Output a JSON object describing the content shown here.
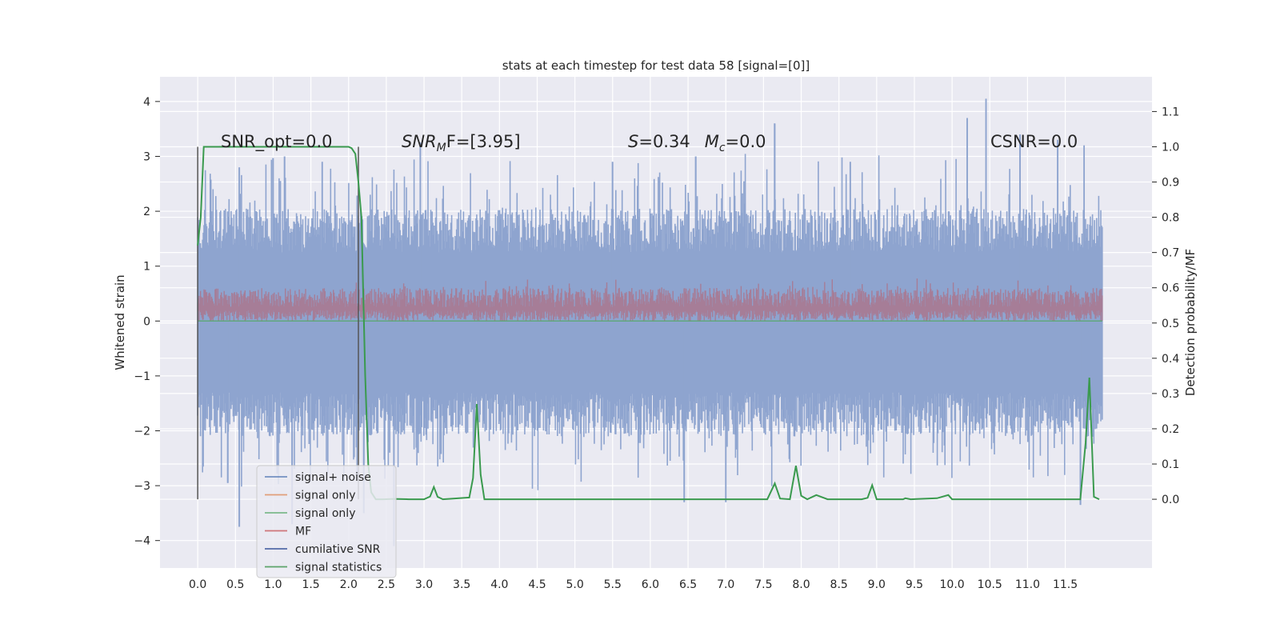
{
  "chart_data": {
    "type": "line",
    "title": "stats at each timestep for test data 58 [signal=[0]]",
    "ylabel": "Whitened strain",
    "y2label": "Detection probability/MF",
    "xlim": [
      -0.5,
      12.65
    ],
    "ylim": [
      -4.5,
      4.45
    ],
    "y2lim": [
      -0.195,
      1.1985
    ],
    "x_ticks": [
      0.0,
      0.5,
      1.0,
      1.5,
      2.0,
      2.5,
      3.0,
      3.5,
      4.0,
      4.5,
      5.0,
      5.5,
      6.0,
      6.5,
      7.0,
      7.5,
      8.0,
      8.5,
      9.0,
      9.5,
      10.0,
      10.5,
      11.0,
      11.5
    ],
    "x_tick_labels": [
      "0.0",
      "0.5",
      "1.0",
      "1.5",
      "2.0",
      "2.5",
      "3.0",
      "3.5",
      "4.0",
      "4.5",
      "5.0",
      "5.5",
      "6.0",
      "6.5",
      "7.0",
      "7.5",
      "8.0",
      "8.5",
      "9.0",
      "9.5",
      "10.0",
      "10.5",
      "11.0",
      "11.5"
    ],
    "y_ticks": [
      -4,
      -3,
      -2,
      -1,
      0,
      1,
      2,
      3,
      4
    ],
    "y_tick_labels": [
      "−4",
      "−3",
      "−2",
      "−1",
      "0",
      "1",
      "2",
      "3",
      "4"
    ],
    "y2_ticks": [
      0.0,
      0.1,
      0.2,
      0.3,
      0.4,
      0.5,
      0.6,
      0.7,
      0.8,
      0.9,
      1.0,
      1.1
    ],
    "y2_tick_labels": [
      "0.0",
      "0.1",
      "0.2",
      "0.3",
      "0.4",
      "0.5",
      "0.6",
      "0.7",
      "0.8",
      "0.9",
      "1.0",
      "1.1"
    ],
    "grid": true,
    "legend_position": "lower-left",
    "legend": [
      {
        "label": "signal+ noise",
        "color": "#4c72b0"
      },
      {
        "label": "signal only",
        "color": "#dd8452"
      },
      {
        "label": "signal only",
        "color": "#55a868"
      },
      {
        "label": "MF",
        "color": "#c44e52"
      },
      {
        "label": "cumilative SNR",
        "color": "#1f3f8f"
      },
      {
        "label": "signal statistics",
        "color": "#2e8b3e"
      }
    ],
    "annotations": {
      "snr_opt": "SNR_opt=0.0",
      "snr_mf_prefix": "SNR",
      "snr_mf_sub": "M",
      "snr_mf_suffix": "F=[3.95]",
      "s_prefix": "S",
      "s_value": "=0.34",
      "mc_prefix": "M",
      "mc_sub": "c",
      "mc_value": "=0.0",
      "csnr": "CSNR=0.0"
    },
    "vertical_lines_x": [
      0.0,
      2.13
    ],
    "series": [
      {
        "name": "signal+ noise",
        "color": "#4c72b0",
        "axis": "left",
        "x_range": [
          0.0,
          11.99
        ],
        "envelope_typical": [
          -1.3,
          1.25
        ],
        "peaks_upper": [
          [
            0.55,
            2.8
          ],
          [
            1.0,
            2.97
          ],
          [
            1.15,
            3.0
          ],
          [
            1.65,
            2.9
          ],
          [
            2.95,
            3.25
          ],
          [
            5.5,
            2.9
          ],
          [
            6.6,
            3.0
          ],
          [
            7.65,
            3.6
          ],
          [
            8.65,
            2.9
          ],
          [
            10.2,
            3.7
          ],
          [
            10.45,
            4.05
          ],
          [
            10.9,
            3.4
          ],
          [
            11.4,
            3.3
          ],
          [
            11.75,
            3.2
          ]
        ],
        "peaks_lower": [
          [
            0.4,
            -2.95
          ],
          [
            0.55,
            -3.75
          ],
          [
            1.25,
            -3.7
          ],
          [
            2.2,
            -3.5
          ],
          [
            2.6,
            -4.1
          ],
          [
            6.45,
            -3.3
          ],
          [
            7.0,
            -3.3
          ],
          [
            11.7,
            -3.35
          ]
        ]
      },
      {
        "name": "signal only",
        "color": "#55a868",
        "axis": "left",
        "x": [
          0.0,
          11.99
        ],
        "y": [
          0.0,
          0.0
        ]
      },
      {
        "name": "MF",
        "color": "#c44e52",
        "axis": "left",
        "x_range": [
          0.0,
          11.99
        ],
        "envelope_typical": [
          0.0,
          0.6
        ]
      },
      {
        "name": "signal statistics",
        "color": "#2e8b3e",
        "axis": "right",
        "x": [
          0.0,
          0.04,
          0.08,
          0.12,
          0.25,
          0.5,
          1.0,
          1.5,
          2.0,
          2.04,
          2.09,
          2.13,
          2.17,
          2.22,
          2.26,
          2.3,
          2.36,
          2.46,
          2.6,
          2.8,
          3.0,
          3.08,
          3.13,
          3.18,
          3.25,
          3.6,
          3.65,
          3.7,
          3.75,
          3.8,
          4.5,
          7.55,
          7.65,
          7.72,
          7.85,
          7.93,
          8.0,
          8.08,
          8.2,
          8.35,
          8.8,
          8.88,
          8.94,
          9.0,
          9.35,
          9.38,
          9.45,
          9.8,
          9.95,
          10.0,
          10.5,
          11.7,
          11.77,
          11.82,
          11.88,
          11.95
        ],
        "y": [
          0.72,
          0.8,
          1.0,
          1.0,
          1.0,
          1.0,
          1.0,
          1.0,
          1.0,
          0.996,
          0.98,
          0.9,
          0.8,
          0.35,
          0.1,
          0.02,
          0.0,
          0.0,
          0.001,
          0.0,
          0.0,
          0.008,
          0.035,
          0.007,
          0.0,
          0.005,
          0.06,
          0.27,
          0.07,
          0.0,
          0.0,
          0.0,
          0.045,
          0.002,
          0.0,
          0.095,
          0.01,
          0.0,
          0.012,
          0.0,
          0.0,
          0.004,
          0.04,
          0.0,
          0.0,
          0.003,
          0.0,
          0.003,
          0.012,
          0.0,
          0.0,
          0.0,
          0.16,
          0.345,
          0.007,
          0.0
        ]
      }
    ]
  }
}
